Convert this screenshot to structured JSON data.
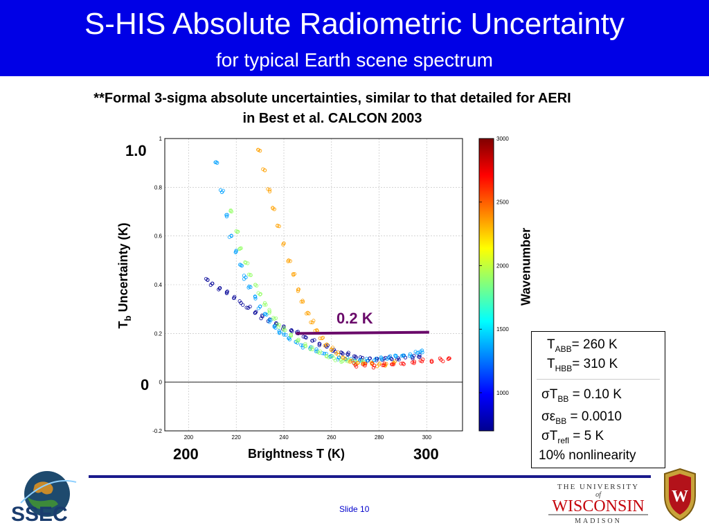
{
  "slide": {
    "title": "S-HIS Absolute Radiometric Uncertainty",
    "subtitle": "for typical Earth scene spectrum",
    "note": "**Formal 3-sigma absolute uncertainties, similar to that detailed for AERI in Best et al. CALCON 2003",
    "footer": "Slide 10",
    "colors": {
      "header_bg": "#0000e6",
      "header_text": "#ffffff",
      "annotation": "#6a0a6a"
    }
  },
  "axis_overlay": {
    "y_top": "1.0",
    "y_zero": "0",
    "x_left": "200",
    "x_right": "300",
    "ylabel_main": "T",
    "ylabel_sub": "b",
    "ylabel_rest": " Uncertainty (K)",
    "xlabel": "Brightness T (K)",
    "colorbar_label": "Wavenumber",
    "annotation": "0.2 K"
  },
  "params": {
    "t_abb": {
      "sym": "T",
      "sub": "ABB",
      "rest": "= 260 K"
    },
    "t_hbb": {
      "sym": "T",
      "sub": "HBB",
      "rest": "= 310 K"
    },
    "s_tbb": {
      "sym": "σT",
      "sub": "BB",
      "rest": " = 0.10 K"
    },
    "s_ebb": {
      "sym": "σε",
      "sub": "BB",
      "rest": " = 0.0010"
    },
    "s_trefl": {
      "sym": "σT",
      "sub": "refl",
      "rest": " = 5 K"
    },
    "nonlin": "10% nonlinearity"
  },
  "logos": {
    "ssec": "SSEC",
    "univ_line1": "THE UNIVERSITY",
    "univ_of": "of",
    "univ_line2": "WISCONSIN",
    "univ_line3": "MADISON",
    "crest_letter": "W"
  },
  "chart_data": {
    "type": "scatter",
    "xlim": [
      190,
      315
    ],
    "ylim": [
      -0.2,
      1.0
    ],
    "xticks": [
      200,
      220,
      240,
      260,
      280,
      300
    ],
    "yticks": [
      -0.2,
      0,
      0.2,
      0.4,
      0.6,
      0.8,
      1
    ],
    "grid": true,
    "colorbar": {
      "min": 700,
      "max": 3000,
      "ticks": [
        1000,
        1500,
        2000,
        2500,
        3000
      ]
    },
    "reference_line": {
      "x": [
        245,
        301
      ],
      "y": [
        0.2,
        0.205
      ],
      "label": "0.2 K"
    },
    "series": [
      {
        "wavenumber": 750,
        "points": [
          [
            208,
            0.42
          ],
          [
            210,
            0.405
          ],
          [
            213,
            0.385
          ],
          [
            216,
            0.365
          ],
          [
            219,
            0.345
          ],
          [
            222,
            0.325
          ],
          [
            225,
            0.305
          ],
          [
            228,
            0.285
          ],
          [
            231,
            0.27
          ],
          [
            234,
            0.255
          ],
          [
            237,
            0.24
          ],
          [
            240,
            0.225
          ],
          [
            243,
            0.212
          ],
          [
            246,
            0.2
          ],
          [
            249,
            0.185
          ],
          [
            252,
            0.17
          ],
          [
            255,
            0.157
          ],
          [
            258,
            0.145
          ],
          [
            261,
            0.133
          ],
          [
            264,
            0.122
          ],
          [
            267,
            0.113
          ],
          [
            270,
            0.105
          ],
          [
            273,
            0.1
          ],
          [
            276,
            0.097
          ],
          [
            279,
            0.096
          ],
          [
            282,
            0.096
          ],
          [
            285,
            0.097
          ],
          [
            288,
            0.099
          ],
          [
            291,
            0.101
          ],
          [
            294,
            0.103
          ],
          [
            297,
            0.104
          ]
        ]
      },
      {
        "wavenumber": 1350,
        "points": [
          [
            212,
            0.9
          ],
          [
            214,
            0.78
          ],
          [
            216,
            0.68
          ],
          [
            218,
            0.6
          ],
          [
            220,
            0.54
          ],
          [
            222,
            0.48
          ],
          [
            224,
            0.43
          ],
          [
            226,
            0.39
          ],
          [
            228,
            0.35
          ],
          [
            230,
            0.31
          ],
          [
            232,
            0.28
          ],
          [
            234,
            0.255
          ],
          [
            236,
            0.23
          ],
          [
            238,
            0.21
          ],
          [
            240,
            0.195
          ],
          [
            242,
            0.18
          ],
          [
            245,
            0.165
          ],
          [
            248,
            0.15
          ],
          [
            251,
            0.138
          ],
          [
            254,
            0.127
          ],
          [
            257,
            0.117
          ],
          [
            260,
            0.108
          ],
          [
            263,
            0.1
          ],
          [
            266,
            0.094
          ],
          [
            269,
            0.09
          ],
          [
            272,
            0.088
          ],
          [
            275,
            0.088
          ],
          [
            278,
            0.09
          ],
          [
            281,
            0.094
          ],
          [
            284,
            0.099
          ],
          [
            287,
            0.105
          ],
          [
            290,
            0.11
          ],
          [
            293,
            0.115
          ],
          [
            296,
            0.12
          ],
          [
            298,
            0.13
          ]
        ]
      },
      {
        "wavenumber": 1900,
        "points": [
          [
            218,
            0.7
          ],
          [
            220,
            0.62
          ],
          [
            222,
            0.55
          ],
          [
            224,
            0.49
          ],
          [
            226,
            0.44
          ],
          [
            228,
            0.4
          ],
          [
            230,
            0.36
          ],
          [
            232,
            0.325
          ],
          [
            234,
            0.29
          ],
          [
            236,
            0.26
          ],
          [
            238,
            0.235
          ],
          [
            240,
            0.215
          ],
          [
            243,
            0.19
          ],
          [
            246,
            0.17
          ],
          [
            249,
            0.15
          ],
          [
            252,
            0.135
          ],
          [
            255,
            0.12
          ],
          [
            258,
            0.108
          ],
          [
            261,
            0.098
          ],
          [
            264,
            0.09
          ],
          [
            267,
            0.085
          ],
          [
            270,
            0.083
          ],
          [
            273,
            0.083
          ]
        ]
      },
      {
        "wavenumber": 2350,
        "points": [
          [
            228,
            1.05
          ],
          [
            230,
            0.95
          ],
          [
            232,
            0.87
          ],
          [
            234,
            0.79
          ],
          [
            236,
            0.71
          ],
          [
            238,
            0.64
          ],
          [
            240,
            0.57
          ],
          [
            242,
            0.5
          ],
          [
            244,
            0.44
          ],
          [
            246,
            0.38
          ],
          [
            248,
            0.33
          ],
          [
            250,
            0.285
          ],
          [
            252,
            0.245
          ],
          [
            254,
            0.21
          ],
          [
            256,
            0.18
          ],
          [
            258,
            0.155
          ],
          [
            260,
            0.135
          ],
          [
            262,
            0.118
          ],
          [
            265,
            0.1
          ],
          [
            268,
            0.088
          ],
          [
            271,
            0.08
          ],
          [
            274,
            0.076
          ],
          [
            277,
            0.074
          ],
          [
            280,
            0.073
          ],
          [
            283,
            0.075
          ],
          [
            286,
            0.078
          ]
        ]
      },
      {
        "wavenumber": 2700,
        "points": [
          [
            270,
            0.07
          ],
          [
            274,
            0.068
          ],
          [
            278,
            0.068
          ],
          [
            282,
            0.07
          ],
          [
            286,
            0.073
          ],
          [
            290,
            0.077
          ],
          [
            294,
            0.081
          ],
          [
            298,
            0.085
          ],
          [
            302,
            0.088
          ],
          [
            306,
            0.092
          ],
          [
            309,
            0.095
          ]
        ]
      }
    ]
  }
}
